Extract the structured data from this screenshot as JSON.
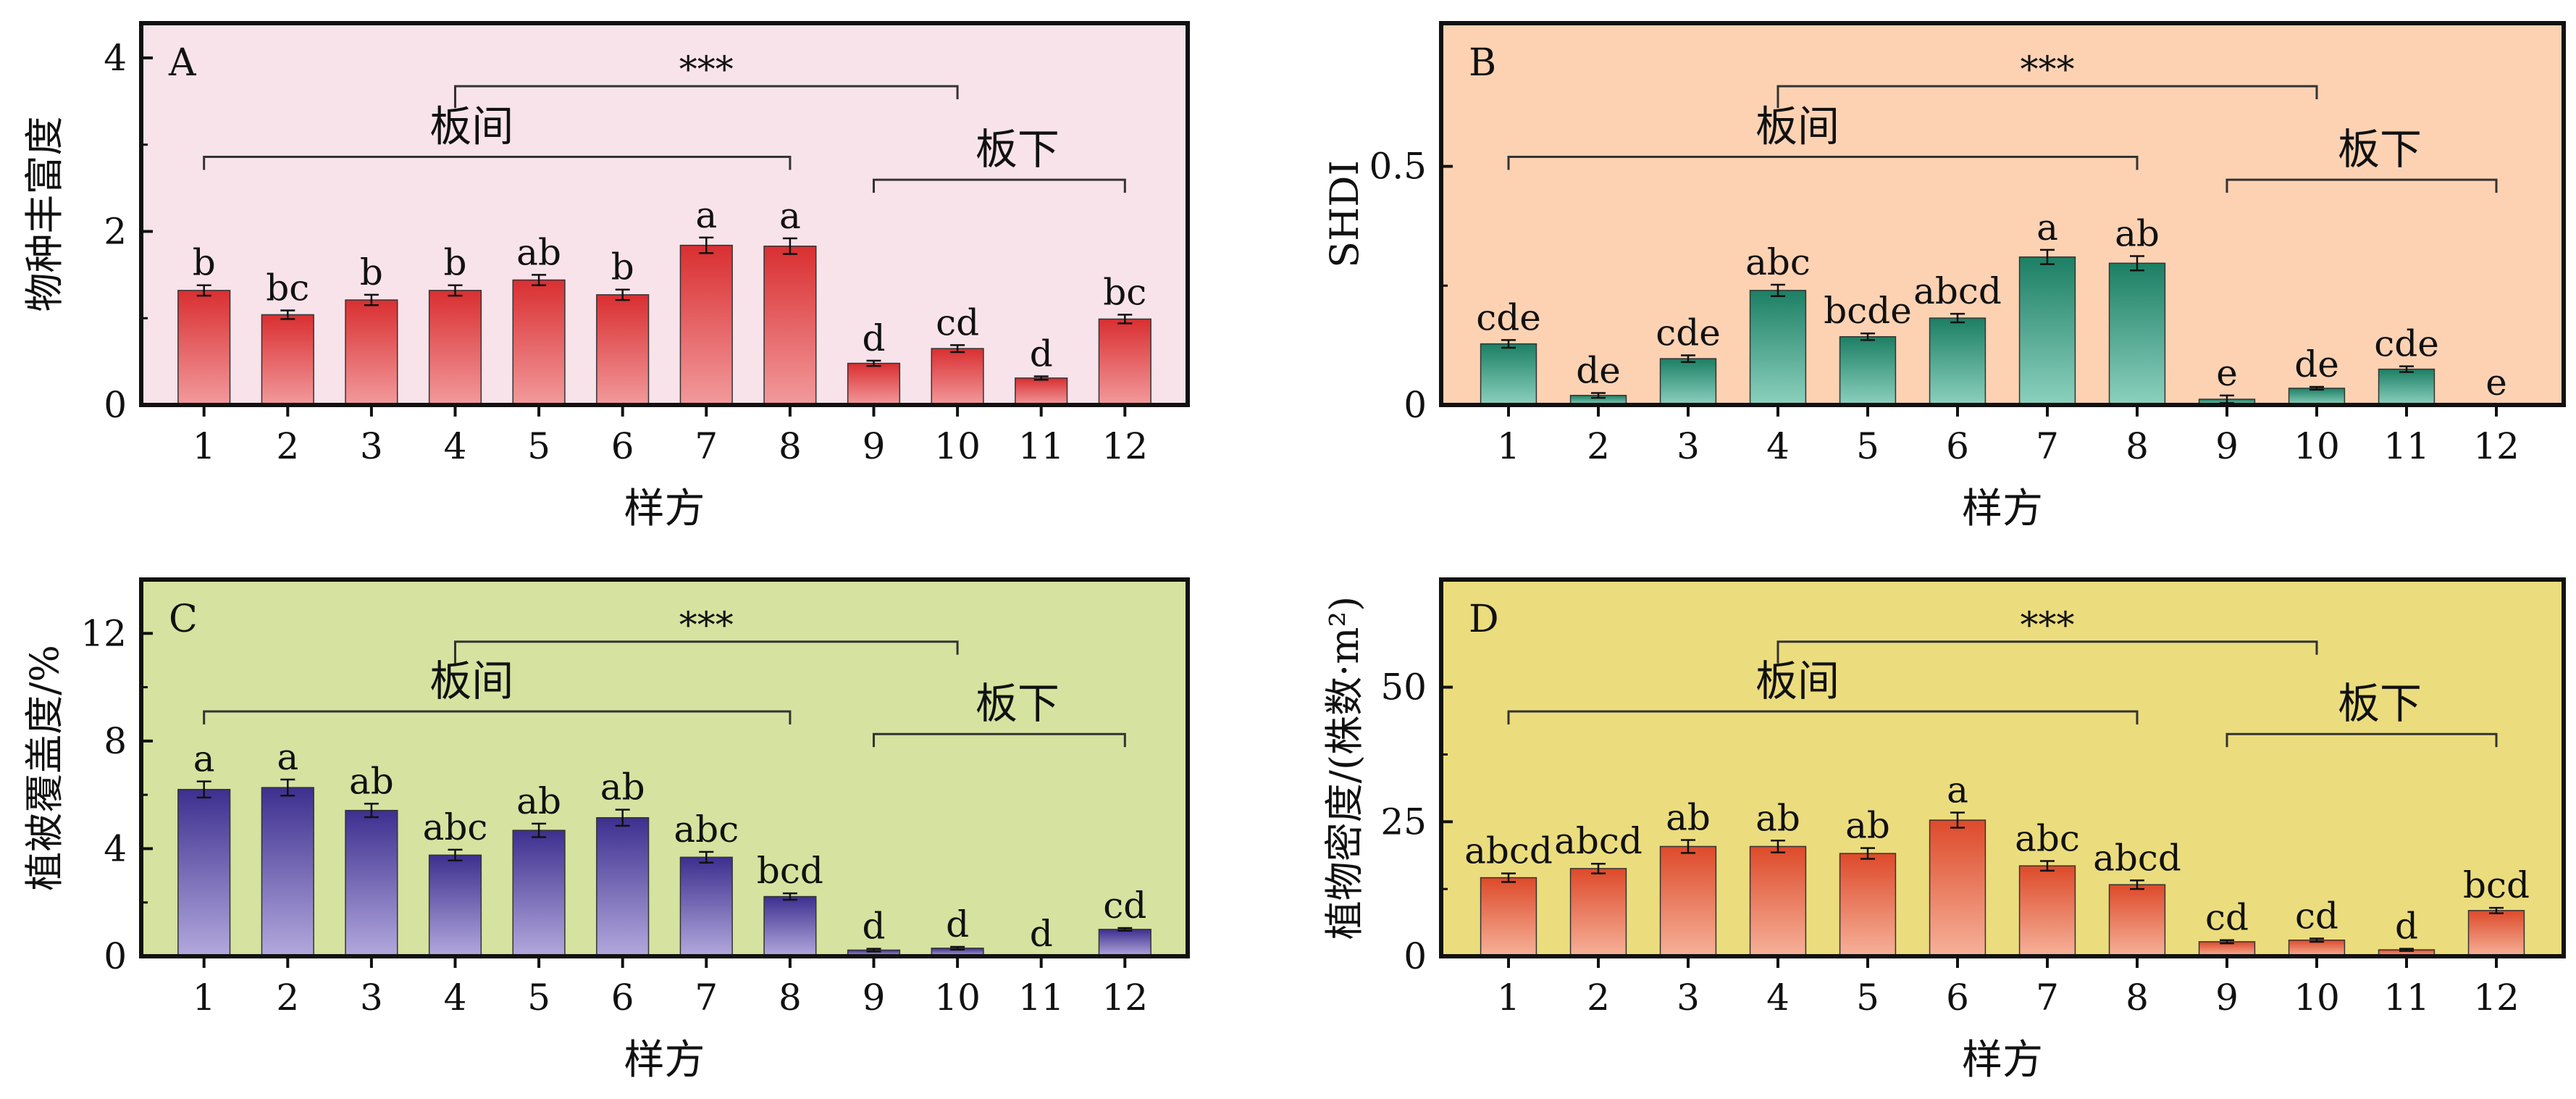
{
  "chart_data": [
    {
      "type": "bar",
      "panel_label": "A",
      "ylabel": "物种丰富度",
      "xlabel": "样方",
      "categories": [
        "1",
        "2",
        "3",
        "4",
        "5",
        "6",
        "7",
        "8",
        "9",
        "10",
        "11",
        "12"
      ],
      "values": [
        1.32,
        1.04,
        1.21,
        1.32,
        1.44,
        1.27,
        1.84,
        1.83,
        0.48,
        0.65,
        0.31,
        0.99
      ],
      "errors": [
        0.06,
        0.05,
        0.06,
        0.06,
        0.06,
        0.06,
        0.09,
        0.09,
        0.03,
        0.04,
        0.02,
        0.05
      ],
      "letters": [
        "b",
        "bc",
        "b",
        "b",
        "ab",
        "b",
        "a",
        "a",
        "d",
        "cd",
        "d",
        "bc"
      ],
      "ylim": [
        0,
        4.4
      ],
      "yticks": [
        0,
        2,
        4
      ],
      "yticklabels": [
        "0",
        "2",
        "4"
      ],
      "colors": {
        "bg": "#f8e3ea",
        "bar_top": "#d92f31",
        "bar_bottom": "#f29a9c"
      },
      "groups": [
        {
          "label": "板间",
          "from": "1",
          "to": "8"
        },
        {
          "label": "板下",
          "from": "9",
          "to": "12"
        }
      ],
      "significance": {
        "label": "***",
        "from": "4",
        "to": "10"
      }
    },
    {
      "type": "bar",
      "panel_label": "B",
      "ylabel": "SHDI",
      "xlabel": "样方",
      "categories": [
        "1",
        "2",
        "3",
        "4",
        "5",
        "6",
        "7",
        "8",
        "9",
        "10",
        "11",
        "12"
      ],
      "values": [
        0.128,
        0.02,
        0.097,
        0.24,
        0.143,
        0.182,
        0.31,
        0.297,
        0.012,
        0.035,
        0.075,
        0.0
      ],
      "errors": [
        0.008,
        0.005,
        0.007,
        0.012,
        0.007,
        0.009,
        0.015,
        0.015,
        0.008,
        0.003,
        0.006,
        0.0
      ],
      "letters": [
        "cde",
        "de",
        "cde",
        "abc",
        "bcde",
        "abcd",
        "a",
        "ab",
        "e",
        "de",
        "cde",
        "e"
      ],
      "ylim": [
        0,
        0.8
      ],
      "yticks": [
        0,
        0.5
      ],
      "yticklabels": [
        "0",
        "0.5"
      ],
      "colors": {
        "bg": "#fcd2b3",
        "bar_top": "#1c7f64",
        "bar_bottom": "#8cd1be"
      },
      "groups": [
        {
          "label": "板间",
          "from": "1",
          "to": "8"
        },
        {
          "label": "板下",
          "from": "9",
          "to": "12"
        }
      ],
      "significance": {
        "label": "***",
        "from": "4",
        "to": "10"
      }
    },
    {
      "type": "bar",
      "panel_label": "C",
      "ylabel": "植被覆盖度/%",
      "xlabel": "样方",
      "categories": [
        "1",
        "2",
        "3",
        "4",
        "5",
        "6",
        "7",
        "8",
        "9",
        "10",
        "11",
        "12"
      ],
      "values": [
        6.2,
        6.27,
        5.42,
        3.76,
        4.68,
        5.15,
        3.68,
        2.22,
        0.23,
        0.3,
        0.0,
        1.0
      ],
      "errors": [
        0.3,
        0.3,
        0.25,
        0.2,
        0.25,
        0.3,
        0.2,
        0.12,
        0.05,
        0.05,
        0.0,
        0.05
      ],
      "letters": [
        "a",
        "a",
        "ab",
        "abc",
        "ab",
        "ab",
        "abc",
        "bcd",
        "d",
        "d",
        "d",
        "cd"
      ],
      "ylim": [
        0,
        14
      ],
      "yticks": [
        0,
        4,
        8,
        12
      ],
      "yticklabels": [
        "0",
        "4",
        "8",
        "12"
      ],
      "colors": {
        "bg": "#d6e29f",
        "bar_top": "#3d2f8f",
        "bar_bottom": "#b3a9dd"
      },
      "groups": [
        {
          "label": "板间",
          "from": "1",
          "to": "8"
        },
        {
          "label": "板下",
          "from": "9",
          "to": "12"
        }
      ],
      "significance": {
        "label": "***",
        "from": "4",
        "to": "10"
      }
    },
    {
      "type": "bar",
      "panel_label": "D",
      "ylabel": "植物密度/(株数·m²)",
      "xlabel": "样方",
      "categories": [
        "1",
        "2",
        "3",
        "4",
        "5",
        "6",
        "7",
        "8",
        "9",
        "10",
        "11",
        "12"
      ],
      "values": [
        14.6,
        16.3,
        20.4,
        20.4,
        19.1,
        25.3,
        16.8,
        13.3,
        2.7,
        3.0,
        1.2,
        8.5
      ],
      "errors": [
        0.8,
        0.9,
        1.2,
        1.1,
        1.0,
        1.4,
        0.9,
        0.8,
        0.3,
        0.3,
        0.2,
        0.5
      ],
      "letters": [
        "abcd",
        "abcd",
        "ab",
        "ab",
        "ab",
        "a",
        "abc",
        "abcd",
        "cd",
        "cd",
        "d",
        "bcd"
      ],
      "ylim": [
        0,
        70
      ],
      "yticks": [
        0,
        25,
        50
      ],
      "yticklabels": [
        "0",
        "25",
        "50"
      ],
      "colors": {
        "bg": "#ebdd7e",
        "bar_top": "#dd4a2a",
        "bar_bottom": "#f6b29a"
      },
      "groups": [
        {
          "label": "板间",
          "from": "1",
          "to": "8"
        },
        {
          "label": "板下",
          "from": "9",
          "to": "12"
        }
      ],
      "significance": {
        "label": "***",
        "from": "4",
        "to": "10"
      }
    }
  ]
}
